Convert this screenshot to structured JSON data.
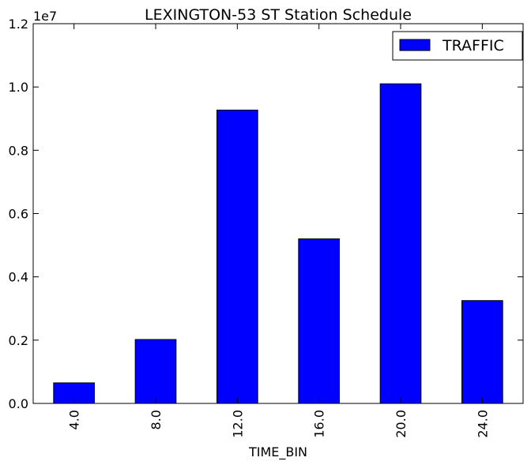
{
  "chart_data": {
    "type": "bar",
    "title": "LEXINGTON-53 ST Station Schedule",
    "xlabel": "TIME_BIN",
    "ylabel": "",
    "categories": [
      "4.0",
      "8.0",
      "12.0",
      "16.0",
      "20.0",
      "24.0"
    ],
    "series": [
      {
        "name": "TRAFFIC",
        "values": [
          650000,
          2020000,
          9270000,
          5200000,
          10100000,
          3250000
        ],
        "color": "#0000ff"
      }
    ],
    "ylim": [
      0,
      12000000
    ],
    "y_ticks": [
      0,
      2000000,
      4000000,
      6000000,
      8000000,
      10000000,
      12000000
    ],
    "y_tick_labels": [
      "0.0",
      "0.2",
      "0.4",
      "0.6",
      "0.8",
      "1.0",
      "1.2"
    ],
    "y_offset_label": "1e7",
    "legend_position": "top-right",
    "grid": false
  }
}
